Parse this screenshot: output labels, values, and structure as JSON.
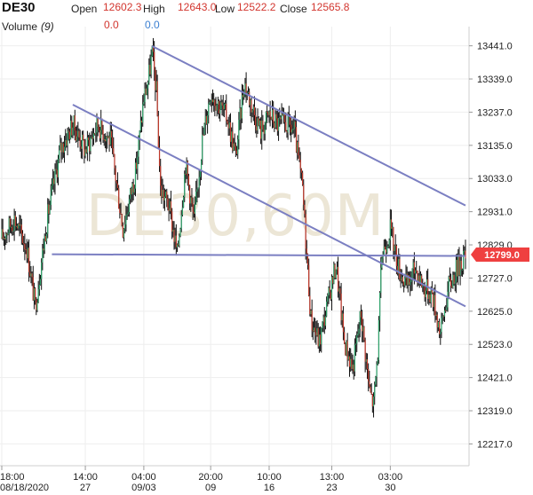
{
  "header": {
    "symbol": "DE30",
    "open_label": "Open",
    "open_value": "12602.3",
    "high_label": "High",
    "high_value": "12643.0",
    "low_label": "Low",
    "low_value": "12522.2",
    "close_label": "Close",
    "close_value": "12565.8",
    "volume_label": "Volume",
    "volume_period": "(9)",
    "volume_value_1": "0.0",
    "volume_value_2": "0.0"
  },
  "watermark": "DE30,60M",
  "colors": {
    "up": "#2fa36b",
    "down": "#c0392b",
    "wick": "#111111",
    "trendline": "#7b7fc2",
    "grid": "#eeeeee",
    "price_tag": "#ef4040"
  },
  "chart_data": {
    "type": "candlestick",
    "timeframe": "60M",
    "ylim": [
      12150,
      13500
    ],
    "y_ticks": [
      13441.0,
      13339.0,
      13237.0,
      13135.0,
      13033.0,
      12931.0,
      12829.0,
      12727.0,
      12625.0,
      12523.0,
      12421.0,
      12319.0,
      12217.0
    ],
    "x_ticks": [
      {
        "top": "18:00",
        "bottom": "08/18/2020",
        "x": 0
      },
      {
        "top": "14:00",
        "bottom": "27",
        "x": 20
      },
      {
        "top": "04:00",
        "bottom": "09/03",
        "x": 34
      },
      {
        "top": "20:00",
        "bottom": "09",
        "x": 50
      },
      {
        "top": "10:00",
        "bottom": "16",
        "x": 64
      },
      {
        "top": "13:00",
        "bottom": "23",
        "x": 79
      },
      {
        "top": "03:00",
        "bottom": "30",
        "x": 93
      }
    ],
    "current_price": 12799.0,
    "trendlines": [
      {
        "x1": 36,
        "y1": 13440,
        "x2": 111,
        "y2": 12950
      },
      {
        "x1": 17,
        "y1": 13260,
        "x2": 111,
        "y2": 12640
      },
      {
        "x1": 12,
        "y1": 12800,
        "x2": 111,
        "y2": 12795
      }
    ],
    "price_path": [
      [
        0,
        12850
      ],
      [
        3,
        12910
      ],
      [
        6,
        12820
      ],
      [
        8,
        12640
      ],
      [
        11,
        12920
      ],
      [
        14,
        13120
      ],
      [
        17,
        13200
      ],
      [
        20,
        13120
      ],
      [
        23,
        13200
      ],
      [
        26,
        13150
      ],
      [
        29,
        12880
      ],
      [
        32,
        13050
      ],
      [
        34,
        13280
      ],
      [
        35,
        13330
      ],
      [
        36,
        13420
      ],
      [
        37,
        13300
      ],
      [
        38,
        13000
      ],
      [
        40,
        12950
      ],
      [
        42,
        12800
      ],
      [
        44,
        13080
      ],
      [
        46,
        12900
      ],
      [
        48,
        13150
      ],
      [
        50,
        13300
      ],
      [
        52,
        13260
      ],
      [
        54,
        13220
      ],
      [
        56,
        13100
      ],
      [
        58,
        13330
      ],
      [
        60,
        13250
      ],
      [
        62,
        13180
      ],
      [
        64,
        13230
      ],
      [
        66,
        13200
      ],
      [
        68,
        13200
      ],
      [
        70,
        13180
      ],
      [
        72,
        13000
      ],
      [
        73,
        12800
      ],
      [
        74,
        12600
      ],
      [
        76,
        12530
      ],
      [
        78,
        12650
      ],
      [
        80,
        12770
      ],
      [
        82,
        12530
      ],
      [
        84,
        12450
      ],
      [
        86,
        12620
      ],
      [
        88,
        12380
      ],
      [
        89,
        12340
      ],
      [
        90,
        12500
      ],
      [
        91,
        12800
      ],
      [
        93,
        12880
      ],
      [
        95,
        12760
      ],
      [
        97,
        12700
      ],
      [
        99,
        12760
      ],
      [
        101,
        12700
      ],
      [
        103,
        12680
      ],
      [
        105,
        12560
      ],
      [
        107,
        12700
      ],
      [
        109,
        12760
      ],
      [
        111,
        12799
      ]
    ],
    "bars": 112
  }
}
